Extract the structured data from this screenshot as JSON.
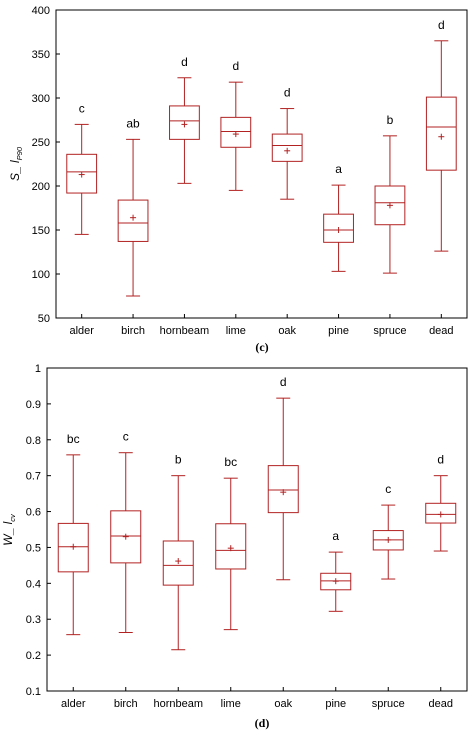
{
  "colors": {
    "box": "#b22222",
    "axis": "#000000",
    "background": "#ffffff"
  },
  "chart_data": [
    {
      "type": "boxplot",
      "caption": "(c)",
      "ylabel_main": "S_ l",
      "ylabel_sub": "P90",
      "categories": [
        "alder",
        "birch",
        "hornbeam",
        "lime",
        "oak",
        "pine",
        "spruce",
        "dead"
      ],
      "ylim": [
        50,
        400
      ],
      "yticks": [
        "50",
        "100",
        "150",
        "200",
        "250",
        "300",
        "350",
        "400"
      ],
      "grid": false,
      "series": [
        {
          "category": "alder",
          "min": 145,
          "q1": 192,
          "median": 216,
          "q3": 236,
          "max": 270,
          "mean": 213,
          "letter": "c"
        },
        {
          "category": "birch",
          "min": 75,
          "q1": 137,
          "median": 158,
          "q3": 184,
          "max": 253,
          "mean": 164,
          "letter": "ab"
        },
        {
          "category": "hornbeam",
          "min": 203,
          "q1": 253,
          "median": 274,
          "q3": 291,
          "max": 323,
          "mean": 270,
          "letter": "d"
        },
        {
          "category": "lime",
          "min": 195,
          "q1": 244,
          "median": 262,
          "q3": 278,
          "max": 318,
          "mean": 259,
          "letter": "d"
        },
        {
          "category": "oak",
          "min": 185,
          "q1": 228,
          "median": 246,
          "q3": 259,
          "max": 288,
          "mean": 240,
          "letter": "d"
        },
        {
          "category": "pine",
          "min": 103,
          "q1": 136,
          "median": 150,
          "q3": 168,
          "max": 201,
          "mean": 150,
          "letter": "a"
        },
        {
          "category": "spruce",
          "min": 101,
          "q1": 156,
          "median": 181,
          "q3": 200,
          "max": 257,
          "mean": 178,
          "letter": "b"
        },
        {
          "category": "dead",
          "min": 126,
          "q1": 218,
          "median": 267,
          "q3": 301,
          "max": 365,
          "mean": 256,
          "letter": "d"
        }
      ]
    },
    {
      "type": "boxplot",
      "caption": "(d)",
      "ylabel_main": "W_ l",
      "ylabel_sub": "cv",
      "categories": [
        "alder",
        "birch",
        "hornbeam",
        "lime",
        "oak",
        "pine",
        "spruce",
        "dead"
      ],
      "ylim": [
        0.1,
        1.0
      ],
      "yticks": [
        "0.1",
        "0.2",
        "0.3",
        "0.4",
        "0.5",
        "0.6",
        "0.7",
        "0.8",
        "0.9",
        "1"
      ],
      "grid": false,
      "series": [
        {
          "category": "alder",
          "min": 0.257,
          "q1": 0.432,
          "median": 0.502,
          "q3": 0.567,
          "max": 0.758,
          "mean": 0.502,
          "letter": "bc"
        },
        {
          "category": "birch",
          "min": 0.263,
          "q1": 0.457,
          "median": 0.532,
          "q3": 0.602,
          "max": 0.764,
          "mean": 0.53,
          "letter": "c"
        },
        {
          "category": "hornbeam",
          "min": 0.215,
          "q1": 0.395,
          "median": 0.45,
          "q3": 0.518,
          "max": 0.7,
          "mean": 0.462,
          "letter": "b"
        },
        {
          "category": "lime",
          "min": 0.271,
          "q1": 0.44,
          "median": 0.492,
          "q3": 0.566,
          "max": 0.693,
          "mean": 0.498,
          "letter": "bc"
        },
        {
          "category": "oak",
          "min": 0.41,
          "q1": 0.597,
          "median": 0.66,
          "q3": 0.728,
          "max": 0.916,
          "mean": 0.654,
          "letter": "d"
        },
        {
          "category": "pine",
          "min": 0.322,
          "q1": 0.382,
          "median": 0.407,
          "q3": 0.428,
          "max": 0.487,
          "mean": 0.406,
          "letter": "a"
        },
        {
          "category": "spruce",
          "min": 0.412,
          "q1": 0.493,
          "median": 0.521,
          "q3": 0.547,
          "max": 0.618,
          "mean": 0.521,
          "letter": "c"
        },
        {
          "category": "dead",
          "min": 0.49,
          "q1": 0.568,
          "median": 0.592,
          "q3": 0.623,
          "max": 0.7,
          "mean": 0.592,
          "letter": "d"
        }
      ]
    }
  ]
}
